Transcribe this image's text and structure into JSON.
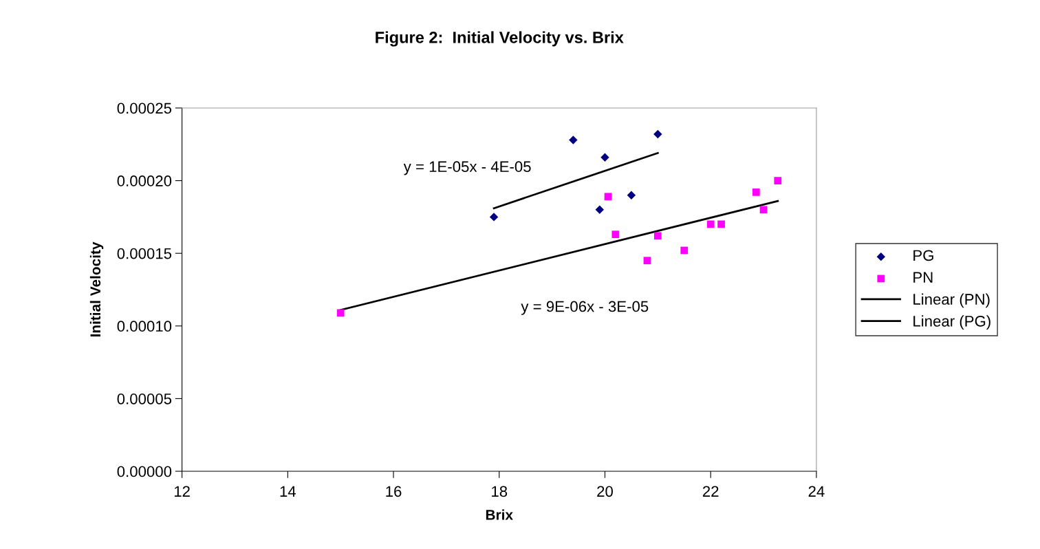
{
  "chart_data": {
    "type": "scatter",
    "title": "Figure 2:  Initial Velocity vs. Brix",
    "xlabel": "Brix",
    "ylabel": "Initial Velocity",
    "xlim": [
      12,
      24
    ],
    "xticks": [
      12,
      14,
      16,
      18,
      20,
      22,
      24
    ],
    "ylim": [
      0,
      0.00025
    ],
    "yticks": [
      {
        "value": 0,
        "label": "0.00000"
      },
      {
        "value": 5e-05,
        "label": "0.00005"
      },
      {
        "value": 0.0001,
        "label": "0.00010"
      },
      {
        "value": 0.00015,
        "label": "0.00015"
      },
      {
        "value": 0.0002,
        "label": "0.00020"
      },
      {
        "value": 0.00025,
        "label": "0.00025"
      }
    ],
    "grid": false,
    "legend": "right",
    "series": [
      {
        "name": "PG",
        "color": "#000080",
        "marker": "diamond",
        "x": [
          19.4,
          20.0,
          21.0,
          20.5,
          19.9,
          17.9
        ],
        "values": [
          0.000228,
          0.000216,
          0.000232,
          0.00019,
          0.00018,
          0.000175
        ]
      },
      {
        "name": "PN",
        "color": "#ff00ff",
        "marker": "square",
        "x": [
          15.0,
          20.06,
          20.2,
          20.8,
          21.0,
          21.5,
          22.0,
          22.2,
          22.86,
          23.0,
          23.27
        ],
        "values": [
          0.000109,
          0.000189,
          0.000163,
          0.000145,
          0.000162,
          0.000152,
          0.00017,
          0.00017,
          0.000192,
          0.00018,
          0.0002
        ]
      },
      {
        "name": "Linear (PN)",
        "type": "line",
        "color": "#000000",
        "marker": "none",
        "line_style": "solid",
        "x": [
          15.0,
          23.27
        ],
        "values": [
          0.000111,
          0.000186
        ]
      },
      {
        "name": "Linear (PG)",
        "type": "line",
        "color": "#000000",
        "marker": "none",
        "line_style": "solid",
        "x": [
          17.9,
          21.0
        ],
        "values": [
          0.000181,
          0.000219
        ]
      }
    ],
    "annotations": [
      "y = 1E-05x - 4E-05",
      "y = 9E-06x - 3E-05"
    ]
  }
}
